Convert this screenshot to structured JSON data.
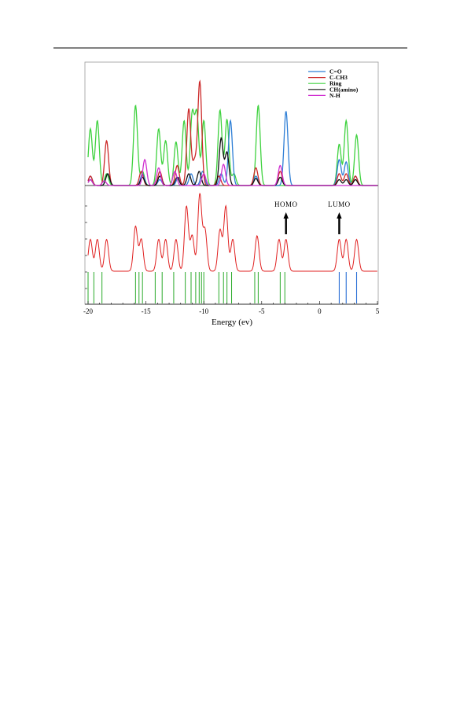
{
  "chart_data": {
    "type": "line",
    "xlabel": "Energy (ev)",
    "xlim": [
      -20,
      5
    ],
    "x_ticks": [
      "-20",
      "-15",
      "-10",
      "-5",
      "0",
      "5"
    ],
    "grid": false,
    "legend_position": "top-right",
    "colors": {
      "C=O": "#2f7fd6",
      "C-CH3": "#cc2a2a",
      "Ring": "#3fd23f",
      "CH(amino)": "#111111",
      "N-H": "#d02fd0",
      "total_dos": "#e02020",
      "occupied_levels": "#2aaa2a",
      "virtual_levels": "#2a6fd6"
    },
    "series": [
      {
        "name": "C=O",
        "peaks": [
          {
            "x": -19.8,
            "h": 0.08
          },
          {
            "x": -18.3,
            "h": 0.1
          },
          {
            "x": -15.3,
            "h": 0.1
          },
          {
            "x": -13.8,
            "h": 0.05
          },
          {
            "x": -12.2,
            "h": 0.07
          },
          {
            "x": -11.1,
            "h": 0.1
          },
          {
            "x": -10.1,
            "h": 0.12
          },
          {
            "x": -8.5,
            "h": 0.1
          },
          {
            "x": -7.7,
            "h": 0.55
          },
          {
            "x": -5.5,
            "h": 0.08
          },
          {
            "x": -2.9,
            "h": 0.63
          },
          {
            "x": 1.7,
            "h": 0.22
          },
          {
            "x": 2.3,
            "h": 0.2
          },
          {
            "x": 3.1,
            "h": 0.08
          }
        ]
      },
      {
        "name": "C-CH3",
        "peaks": [
          {
            "x": -19.8,
            "h": 0.08
          },
          {
            "x": -18.4,
            "h": 0.38
          },
          {
            "x": -15.4,
            "h": 0.12
          },
          {
            "x": -13.8,
            "h": 0.12
          },
          {
            "x": -12.3,
            "h": 0.17
          },
          {
            "x": -11.3,
            "h": 0.65
          },
          {
            "x": -10.8,
            "h": 0.2
          },
          {
            "x": -10.35,
            "h": 0.88
          },
          {
            "x": -8.7,
            "h": 0.08
          },
          {
            "x": -5.5,
            "h": 0.15
          },
          {
            "x": -3.4,
            "h": 0.12
          },
          {
            "x": 1.7,
            "h": 0.1
          },
          {
            "x": 2.3,
            "h": 0.1
          },
          {
            "x": 3.1,
            "h": 0.08
          }
        ]
      },
      {
        "name": "Ring",
        "peaks": [
          {
            "x": -19.8,
            "h": 0.48
          },
          {
            "x": -19.2,
            "h": 0.55
          },
          {
            "x": -18.4,
            "h": 0.1
          },
          {
            "x": -15.9,
            "h": 0.68
          },
          {
            "x": -15.3,
            "h": 0.12
          },
          {
            "x": -13.9,
            "h": 0.48
          },
          {
            "x": -13.3,
            "h": 0.38
          },
          {
            "x": -12.4,
            "h": 0.37
          },
          {
            "x": -11.7,
            "h": 0.55
          },
          {
            "x": -11.0,
            "h": 0.6
          },
          {
            "x": -10.6,
            "h": 0.6
          },
          {
            "x": -10.0,
            "h": 0.55
          },
          {
            "x": -8.6,
            "h": 0.64
          },
          {
            "x": -8.0,
            "h": 0.56
          },
          {
            "x": -7.4,
            "h": 0.1
          },
          {
            "x": -5.3,
            "h": 0.68
          },
          {
            "x": 1.7,
            "h": 0.35
          },
          {
            "x": 2.3,
            "h": 0.55
          },
          {
            "x": 3.2,
            "h": 0.43
          }
        ]
      },
      {
        "name": "CH(amino)",
        "peaks": [
          {
            "x": -19.8,
            "h": 0.05
          },
          {
            "x": -18.3,
            "h": 0.1
          },
          {
            "x": -15.3,
            "h": 0.07
          },
          {
            "x": -13.8,
            "h": 0.08
          },
          {
            "x": -12.3,
            "h": 0.07
          },
          {
            "x": -11.3,
            "h": 0.1
          },
          {
            "x": -10.4,
            "h": 0.12
          },
          {
            "x": -8.5,
            "h": 0.4
          },
          {
            "x": -8.0,
            "h": 0.28
          },
          {
            "x": -5.5,
            "h": 0.06
          },
          {
            "x": -3.4,
            "h": 0.07
          },
          {
            "x": 1.7,
            "h": 0.05
          },
          {
            "x": 2.3,
            "h": 0.05
          },
          {
            "x": 3.1,
            "h": 0.05
          }
        ]
      },
      {
        "name": "N-H",
        "peaks": [
          {
            "x": -19.8,
            "h": 0.05
          },
          {
            "x": -18.6,
            "h": 0.04
          },
          {
            "x": -15.1,
            "h": 0.22
          },
          {
            "x": -13.9,
            "h": 0.15
          },
          {
            "x": -12.5,
            "h": 0.12
          },
          {
            "x": -10.0,
            "h": 0.1
          },
          {
            "x": -8.3,
            "h": 0.18
          },
          {
            "x": -3.4,
            "h": 0.17
          }
        ]
      }
    ],
    "total_dos": {
      "name": "",
      "peaks": [
        {
          "x": -19.8,
          "h": 0.27
        },
        {
          "x": -19.2,
          "h": 0.27
        },
        {
          "x": -18.4,
          "h": 0.27
        },
        {
          "x": -15.9,
          "h": 0.38
        },
        {
          "x": -15.4,
          "h": 0.27
        },
        {
          "x": -13.9,
          "h": 0.27
        },
        {
          "x": -13.3,
          "h": 0.27
        },
        {
          "x": -12.4,
          "h": 0.27
        },
        {
          "x": -11.5,
          "h": 0.55
        },
        {
          "x": -11.0,
          "h": 0.3
        },
        {
          "x": -10.35,
          "h": 0.65
        },
        {
          "x": -9.9,
          "h": 0.35
        },
        {
          "x": -8.6,
          "h": 0.35
        },
        {
          "x": -8.1,
          "h": 0.55
        },
        {
          "x": -7.5,
          "h": 0.27
        },
        {
          "x": -5.4,
          "h": 0.3
        },
        {
          "x": -3.5,
          "h": 0.27
        },
        {
          "x": -2.9,
          "h": 0.27
        },
        {
          "x": 1.7,
          "h": 0.27
        },
        {
          "x": 2.3,
          "h": 0.27
        },
        {
          "x": 3.2,
          "h": 0.27
        }
      ]
    },
    "occupied_levels": [
      -20.0,
      -19.5,
      -18.8,
      -15.9,
      -15.6,
      -15.3,
      -14.2,
      -13.6,
      -12.6,
      -11.6,
      -11.1,
      -10.7,
      -10.4,
      -10.2,
      -10.0,
      -8.7,
      -8.3,
      -8.0,
      -7.6,
      -5.6,
      -5.3,
      -3.4,
      -3.0
    ],
    "virtual_levels": [
      1.7,
      2.3,
      3.2
    ],
    "annotations": [
      {
        "text": "HOMO",
        "x": -2.9
      },
      {
        "text": "LUMO",
        "x": 1.7
      }
    ]
  }
}
